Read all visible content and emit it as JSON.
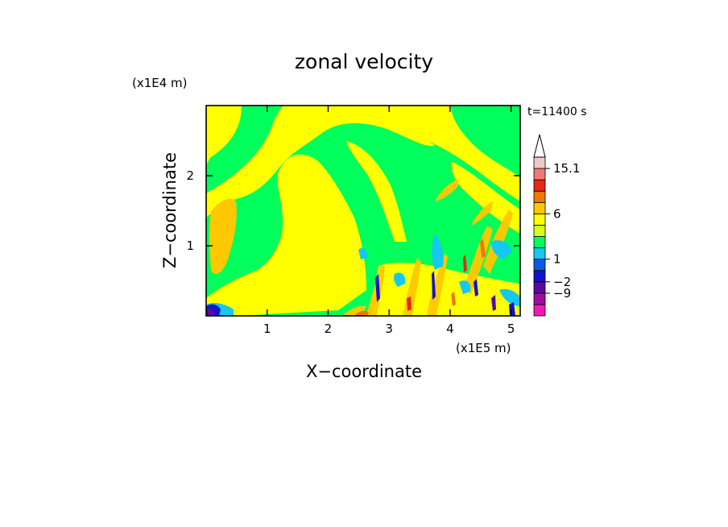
{
  "chart_data": {
    "type": "heatmap",
    "title": "zonal velocity",
    "xlabel": "X−coordinate",
    "ylabel": "Z−coordinate",
    "x_unit": "(x1E5 m)",
    "y_unit": "(x1E4 m)",
    "time_label": "t=11400 s",
    "xlim": [
      0,
      5.15
    ],
    "ylim": [
      0,
      3.0
    ],
    "x_ticks": [
      1,
      2,
      3,
      4,
      5
    ],
    "y_ticks": [
      1,
      2
    ],
    "colorbar": {
      "levels": [
        {
          "color": "#f019b0"
        },
        {
          "color": "#a00da0"
        },
        {
          "color": "#5a0aa0"
        },
        {
          "color": "#1414c8"
        },
        {
          "color": "#0a5ae6"
        },
        {
          "color": "#14c8f0"
        },
        {
          "color": "#00ff5a"
        },
        {
          "color": "#d2ff1e"
        },
        {
          "color": "#ffff00"
        },
        {
          "color": "#ffc800"
        },
        {
          "color": "#f07800"
        },
        {
          "color": "#e62814"
        },
        {
          "color": "#f07878"
        },
        {
          "color": "#f0c8c8"
        }
      ],
      "tick_labels": [
        {
          "label": "15.1",
          "value": 15.1
        },
        {
          "label": "6",
          "value": 6
        },
        {
          "label": "1",
          "value": 1
        },
        {
          "label": "−2",
          "value": -2
        },
        {
          "label": "−9",
          "value": -9
        }
      ],
      "extend": "max"
    },
    "grid": false
  }
}
